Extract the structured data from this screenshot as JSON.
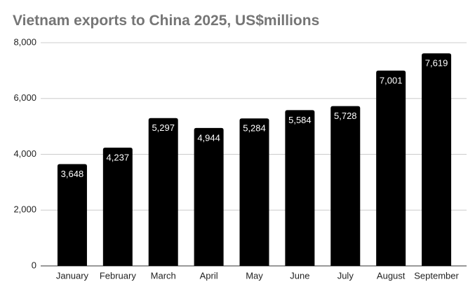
{
  "chart_data": {
    "type": "bar",
    "title": "Vietnam exports to China 2025, US$millions",
    "categories": [
      "January",
      "February",
      "March",
      "April",
      "May",
      "June",
      "July",
      "August",
      "September"
    ],
    "values": [
      3648,
      4237,
      5297,
      4944,
      5284,
      5584,
      5728,
      7001,
      7619
    ],
    "value_labels": [
      "3,648",
      "4,237",
      "5,297",
      "4,944",
      "5,284",
      "5,584",
      "5,728",
      "7,001",
      "7,619"
    ],
    "color": "#000000",
    "ylim": [
      0,
      8000
    ],
    "yticks": [
      0,
      {
        "value": 2000,
        "label": "2,000"
      },
      {
        "value": 4000,
        "label": "4,000"
      },
      {
        "value": 6000,
        "label": "6,000"
      },
      {
        "value": 8000,
        "label": "8,000"
      }
    ],
    "grid": true
  }
}
